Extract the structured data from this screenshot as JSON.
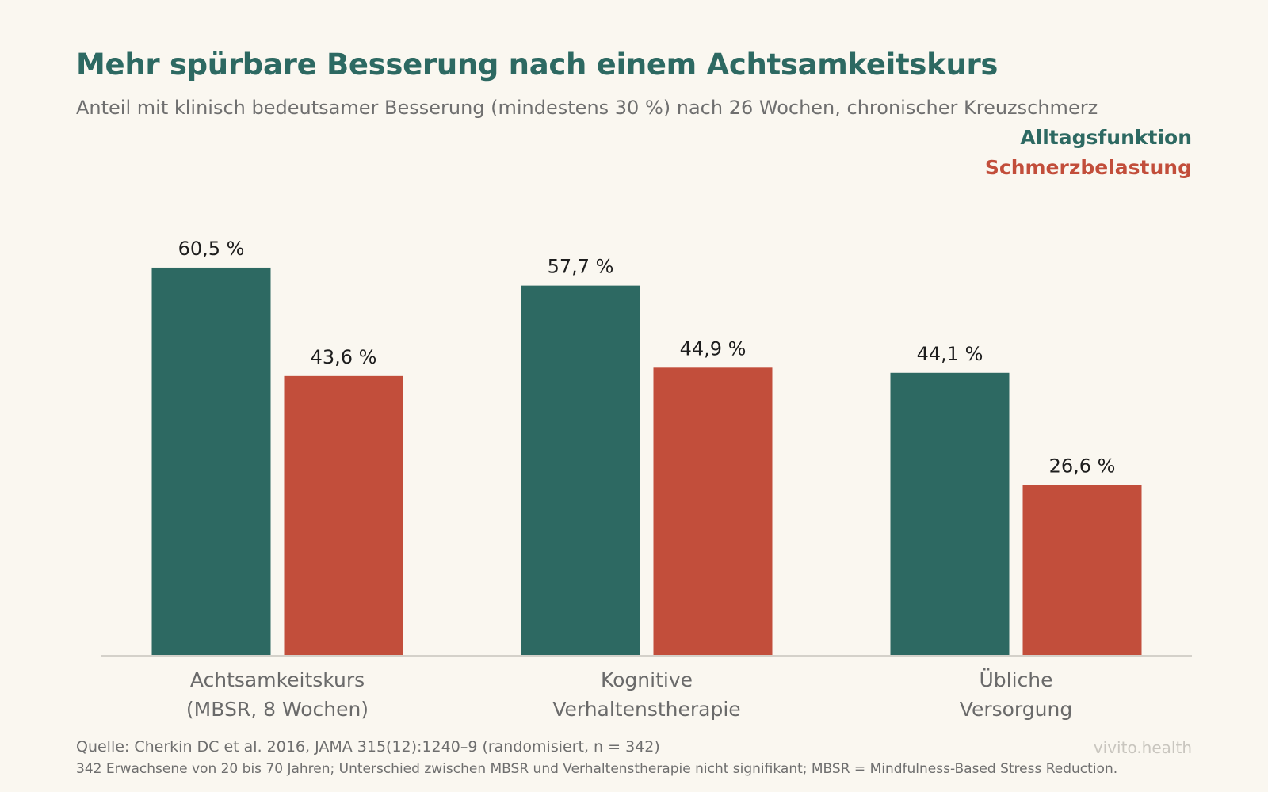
{
  "title": "Mehr spürbare Besserung nach einem Achtsamkeitskurs",
  "subtitle": "Anteil mit klinisch bedeutsamer Besserung (mindestens 30 %) nach 26 Wochen, chronischer Kreuzschmerz",
  "source": "Quelle: Cherkin DC et al. 2016, JAMA 315(12):1240–9 (randomisiert, n = 342)",
  "footnote": "342 Erwachsene von 20 bis 70 Jahren; Unterschied zwischen MBSR und Verhaltenstherapie nicht signifikant; MBSR = Mindfulness-Based Stress Reduction.",
  "brand": "vivito.health",
  "colors": {
    "series1": "#2d6962",
    "series2": "#c24e3b",
    "axis": "#d4d1ca",
    "background": "#faf7f0"
  },
  "chart_data": {
    "type": "bar",
    "categories": [
      [
        "Achtsamkeitskurs",
        "(MBSR, 8 Wochen)"
      ],
      [
        "Kognitive",
        "Verhaltenstherapie"
      ],
      [
        "Übliche",
        "Versorgung"
      ]
    ],
    "series": [
      {
        "name": "Alltagsfunktion",
        "values": [
          60.5,
          57.7,
          44.1
        ],
        "labels": [
          "60,5 %",
          "57,7 %",
          "44,1 %"
        ]
      },
      {
        "name": "Schmerzbelastung",
        "values": [
          43.6,
          44.9,
          26.6
        ],
        "labels": [
          "43,6 %",
          "44,9 %",
          "26,6 %"
        ]
      }
    ],
    "title": "Mehr spürbare Besserung nach einem Achtsamkeitskurs",
    "legend_position": "top-right",
    "grid": false
  }
}
